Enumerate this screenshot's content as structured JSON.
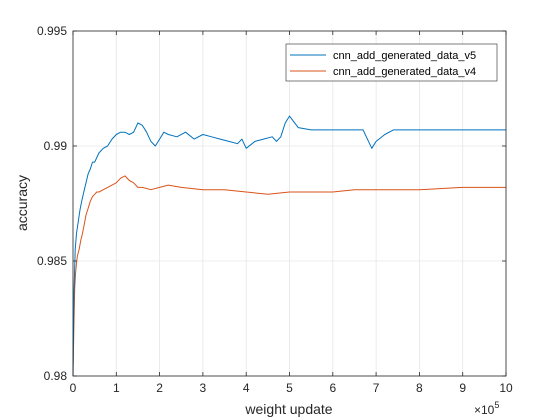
{
  "chart_data": {
    "type": "line",
    "title": "",
    "xlabel": "weight update",
    "ylabel": "accuracy",
    "xlim": [
      0,
      1000000
    ],
    "ylim": [
      0.98,
      0.995
    ],
    "x_ticks": [
      0,
      100000,
      200000,
      300000,
      400000,
      500000,
      600000,
      700000,
      800000,
      900000,
      1000000
    ],
    "x_tick_labels": [
      "0",
      "1",
      "2",
      "3",
      "4",
      "5",
      "6",
      "7",
      "8",
      "9",
      "10"
    ],
    "x_exponent_label": "×10",
    "x_exponent_power": "5",
    "y_ticks": [
      0.98,
      0.985,
      0.99,
      0.995
    ],
    "y_tick_labels": [
      "0.98",
      "0.985",
      "0.99",
      "0.995"
    ],
    "grid": true,
    "legend_position": "top-right",
    "colors": {
      "v5": "#0072BD",
      "v4": "#D95319",
      "grid": "#e6e6e6",
      "axis": "#262626"
    },
    "series": [
      {
        "name": "cnn_add_generated_data_v5",
        "color": "#0072BD",
        "x": [
          0,
          2000,
          5000,
          8000,
          12000,
          16000,
          20000,
          25000,
          30000,
          35000,
          40000,
          45000,
          50000,
          55000,
          60000,
          70000,
          80000,
          90000,
          100000,
          110000,
          120000,
          130000,
          140000,
          150000,
          160000,
          170000,
          180000,
          190000,
          200000,
          210000,
          220000,
          240000,
          260000,
          280000,
          300000,
          320000,
          340000,
          360000,
          380000,
          390000,
          400000,
          420000,
          440000,
          460000,
          470000,
          480000,
          490000,
          500000,
          520000,
          550000,
          600000,
          650000,
          670000,
          680000,
          690000,
          700000,
          720000,
          740000,
          800000,
          900000,
          1000000
        ],
        "values": [
          0.98,
          0.9835,
          0.9855,
          0.9862,
          0.9867,
          0.9872,
          0.9876,
          0.988,
          0.9884,
          0.9888,
          0.989,
          0.9893,
          0.9893,
          0.9895,
          0.9897,
          0.9899,
          0.99,
          0.9903,
          0.9905,
          0.9906,
          0.9906,
          0.9905,
          0.9906,
          0.991,
          0.9909,
          0.9906,
          0.9902,
          0.99,
          0.9903,
          0.9906,
          0.9905,
          0.9904,
          0.9906,
          0.9903,
          0.9905,
          0.9904,
          0.9903,
          0.9902,
          0.9901,
          0.9903,
          0.9899,
          0.9902,
          0.9903,
          0.9904,
          0.9902,
          0.9904,
          0.991,
          0.9913,
          0.9908,
          0.9907,
          0.9907,
          0.9907,
          0.9907,
          0.9903,
          0.9899,
          0.9902,
          0.9905,
          0.9907,
          0.9907,
          0.9907,
          0.9907
        ]
      },
      {
        "name": "cnn_add_generated_data_v4",
        "color": "#D95319",
        "x": [
          0,
          2000,
          4000,
          6000,
          8000,
          10000,
          14000,
          18000,
          22000,
          26000,
          30000,
          35000,
          40000,
          45000,
          50000,
          55000,
          60000,
          70000,
          80000,
          90000,
          100000,
          110000,
          120000,
          130000,
          140000,
          150000,
          160000,
          180000,
          200000,
          220000,
          250000,
          300000,
          350000,
          400000,
          450000,
          500000,
          550000,
          600000,
          650000,
          700000,
          800000,
          900000,
          1000000
        ],
        "values": [
          0.98,
          0.9822,
          0.9838,
          0.9845,
          0.9849,
          0.9852,
          0.9855,
          0.9859,
          0.9862,
          0.9866,
          0.987,
          0.9873,
          0.9876,
          0.9878,
          0.9879,
          0.988,
          0.988,
          0.9881,
          0.9882,
          0.9883,
          0.9884,
          0.9886,
          0.9887,
          0.9885,
          0.9884,
          0.9882,
          0.9882,
          0.9881,
          0.9882,
          0.9883,
          0.9882,
          0.9881,
          0.9881,
          0.988,
          0.9879,
          0.988,
          0.988,
          0.988,
          0.9881,
          0.9881,
          0.9881,
          0.9882,
          0.9882
        ]
      }
    ]
  }
}
